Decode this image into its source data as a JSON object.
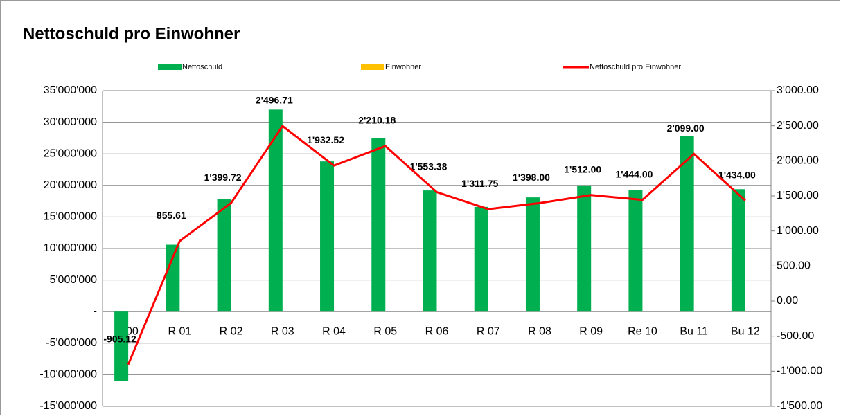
{
  "chart_data": {
    "type": "combo",
    "title": "Nettoschuld pro Einwohner",
    "categories": [
      "R00",
      "R 01",
      "R 02",
      "R 03",
      "R 04",
      "R 05",
      "R 06",
      "R 07",
      "R 08",
      "R 09",
      "Re 10",
      "Bu 11",
      "Bu 12"
    ],
    "series": [
      {
        "name": "Nettoschuld",
        "color": "#00b050",
        "type": "bar",
        "values": [
          -11000000,
          10600000,
          17800000,
          32000000,
          23800000,
          27500000,
          19200000,
          16600000,
          18100000,
          20000000,
          19300000,
          27800000,
          19400000
        ]
      },
      {
        "name": "Einwohner",
        "color": "#ffc000",
        "type": "bar",
        "values": [
          null,
          null,
          null,
          null,
          null,
          null,
          null,
          null,
          null,
          null,
          null,
          null,
          null
        ]
      },
      {
        "name": "Nettoschuld pro Einwohner",
        "color": "#ff0000",
        "type": "line",
        "axis": "y2",
        "values": [
          -905.12,
          855.61,
          1399.72,
          2496.71,
          1932.52,
          2210.18,
          1553.38,
          1311.75,
          1398.0,
          1512.0,
          1444.0,
          2099.0,
          1434.0
        ],
        "value_labels": [
          "-905.12",
          "855.61",
          "1'399.72",
          "2'496.71",
          "1'932.52",
          "2'210.18",
          "1'553.38",
          "1'311.75",
          "1'398.00",
          "1'512.00",
          "1'444.00",
          "2'099.00",
          "1'434.00"
        ]
      }
    ],
    "ylim": [
      -15000000,
      35000000
    ],
    "yticks": [
      {
        "value": -15000000,
        "label": "-15'000'000"
      },
      {
        "value": -10000000,
        "label": "-10'000'000"
      },
      {
        "value": -5000000,
        "label": "-5'000'000"
      },
      {
        "value": 0,
        "label": "-"
      },
      {
        "value": 5000000,
        "label": "5'000'000"
      },
      {
        "value": 10000000,
        "label": "10'000'000"
      },
      {
        "value": 15000000,
        "label": "15'000'000"
      },
      {
        "value": 20000000,
        "label": "20'000'000"
      },
      {
        "value": 25000000,
        "label": "25'000'000"
      },
      {
        "value": 30000000,
        "label": "30'000'000"
      },
      {
        "value": 35000000,
        "label": "35'000'000"
      }
    ],
    "y2lim": [
      -1500,
      3000
    ],
    "y2ticks": [
      {
        "value": -1500,
        "label": "-1'500.00"
      },
      {
        "value": -1000,
        "label": "-1'000.00"
      },
      {
        "value": -500,
        "label": "-500.00"
      },
      {
        "value": 0,
        "label": "0.00"
      },
      {
        "value": 500,
        "label": "500.00"
      },
      {
        "value": 1000,
        "label": "1'000.00"
      },
      {
        "value": 1500,
        "label": "1'500.00"
      },
      {
        "value": 2000,
        "label": "2'000.00"
      },
      {
        "value": 2500,
        "label": "2'500.00"
      },
      {
        "value": 3000,
        "label": "3'000.00"
      }
    ],
    "grid": true
  }
}
